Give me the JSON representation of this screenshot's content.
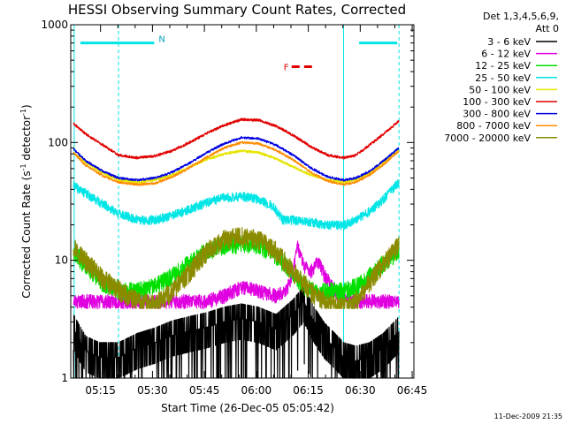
{
  "chart_data": {
    "type": "line",
    "title": "HESSI Observing Summary Count Rates, Corrected",
    "xlabel": "Start Time (26-Dec-05 05:05:42)",
    "ylabel_main": "Corrected Count Rate (s",
    "ylabel_sup1": "-1",
    "ylabel_mid": " detector",
    "ylabel_sup2": "-1",
    "ylabel_end": ")",
    "y_scale": "log",
    "ylim": [
      1,
      1000
    ],
    "xlim_min": [
      5.7,
      104.8
    ],
    "xticks": [
      {
        "v": 14.3,
        "label": "05:15"
      },
      {
        "v": 29.3,
        "label": "05:30"
      },
      {
        "v": 44.3,
        "label": "05:45"
      },
      {
        "v": 59.3,
        "label": "06:00"
      },
      {
        "v": 74.3,
        "label": "06:15"
      },
      {
        "v": 89.3,
        "label": "06:30"
      },
      {
        "v": 104.3,
        "label": "06:45"
      }
    ],
    "yticks": [
      {
        "v": 1,
        "label": "1"
      },
      {
        "v": 10,
        "label": "10"
      },
      {
        "v": 100,
        "label": "100"
      },
      {
        "v": 1000,
        "label": "1000"
      }
    ],
    "legend_header": [
      "Det 1,3,4,5,6,9,",
      "Att 0"
    ],
    "legend_placement": "right",
    "footer_stamp": "11-Dec-2009 21:35",
    "markers": [
      {
        "label": "N",
        "color": "#00e5e5",
        "x_start": 8.5,
        "x_end": 29.8,
        "y": 700
      },
      {
        "label": "",
        "color": "#00e5e5",
        "x_start": 89.0,
        "x_end": 100.0,
        "y": 700
      },
      {
        "label": "F",
        "color": "#e00000",
        "x_start": 69.5,
        "x_end": 76.0,
        "y": 440
      }
    ],
    "vlines": [
      {
        "x": 6.7,
        "style": "solid"
      },
      {
        "x": 19.5,
        "style": "dashed"
      },
      {
        "x": 84.5,
        "style": "solid"
      },
      {
        "x": 100.5,
        "style": "dashed"
      }
    ],
    "series": [
      {
        "name": "3 - 6 keV",
        "color": "#000000",
        "width": 1.2,
        "x": [
          6.5,
          10,
          14,
          19.5,
          25,
          30,
          35,
          40,
          45,
          50,
          55,
          60,
          65,
          70,
          73,
          76,
          79,
          82,
          84.5,
          88,
          92,
          96,
          100.5
        ],
        "y": [
          2.6,
          1.7,
          1.5,
          1.5,
          1.8,
          2.0,
          2.3,
          2.5,
          2.7,
          3.0,
          3.2,
          3.0,
          2.6,
          3.5,
          4.5,
          3.0,
          2.2,
          1.8,
          1.5,
          1.4,
          1.5,
          1.8,
          2.5
        ],
        "noise": 0.45,
        "seed": 11
      },
      {
        "name": "6 - 12 keV",
        "color": "#e000e0",
        "width": 1.1,
        "x": [
          6.5,
          19.5,
          30,
          45,
          50,
          55,
          60,
          65,
          68,
          70,
          71,
          73,
          75,
          77,
          79,
          82,
          84.5,
          90,
          100.5
        ],
        "y": [
          4.5,
          4.5,
          4.5,
          4.5,
          5.0,
          6.0,
          5.5,
          5.0,
          5.5,
          8.0,
          14.0,
          9.0,
          8.0,
          10.0,
          7.5,
          5.5,
          4.8,
          4.5,
          4.5
        ],
        "noise": 0.14,
        "seed": 23
      },
      {
        "name": "12 - 25 keV",
        "color": "#00e000",
        "width": 1.1,
        "x": [
          6.5,
          10,
          15,
          20,
          25,
          30,
          35,
          40,
          45,
          50,
          55,
          60,
          65,
          70,
          72,
          75,
          80,
          84.5,
          88,
          92,
          96,
          100.5
        ],
        "y": [
          12,
          9,
          6.5,
          5.5,
          5.5,
          6.0,
          7.5,
          9.5,
          12,
          13.5,
          14,
          13.5,
          11,
          8,
          6.5,
          5.5,
          5.5,
          5.5,
          6.0,
          7.5,
          9.5,
          12
        ],
        "noise": 0.18,
        "seed": 37
      },
      {
        "name": "25 - 50 keV",
        "color": "#00e5e5",
        "width": 1.1,
        "x": [
          6.5,
          10,
          15,
          19.5,
          25,
          30,
          35,
          40,
          45,
          50,
          55,
          60,
          64,
          67,
          70,
          75,
          80,
          84.5,
          88,
          92,
          96,
          100.5
        ],
        "y": [
          43,
          37,
          30,
          25,
          22,
          22,
          24,
          27,
          31,
          34,
          35,
          33,
          29,
          22,
          22,
          21,
          20,
          20,
          22,
          26,
          33,
          46
        ],
        "noise": 0.09,
        "seed": 41
      },
      {
        "name": "50 - 100 keV",
        "color": "#e5e500",
        "width": 1.1,
        "x": [
          6.5,
          10,
          15,
          19.5,
          25,
          30,
          35,
          40,
          45,
          50,
          55,
          60,
          65,
          70,
          75,
          80,
          84.5,
          88,
          92,
          96,
          100.5
        ],
        "y": [
          82,
          68,
          55,
          48,
          46,
          48,
          53,
          62,
          72,
          80,
          85,
          82,
          73,
          62,
          53,
          48,
          46,
          48,
          55,
          68,
          85
        ],
        "noise": 0.025,
        "seed": 53
      },
      {
        "name": "100 - 300 keV",
        "color": "#e00000",
        "width": 1.1,
        "x": [
          6.5,
          10,
          15,
          19.5,
          25,
          30,
          35,
          40,
          45,
          50,
          55,
          60,
          65,
          70,
          75,
          80,
          84.5,
          88,
          92,
          96,
          100.5
        ],
        "y": [
          145,
          118,
          95,
          78,
          74,
          77,
          85,
          100,
          120,
          140,
          157,
          155,
          138,
          115,
          92,
          78,
          74,
          78,
          95,
          118,
          152
        ],
        "noise": 0.025,
        "seed": 61
      },
      {
        "name": "300 - 800 keV",
        "color": "#0000e0",
        "width": 1.1,
        "x": [
          6.5,
          10,
          15,
          19.5,
          25,
          30,
          35,
          40,
          45,
          50,
          55,
          60,
          65,
          70,
          75,
          80,
          84.5,
          88,
          92,
          96,
          100.5
        ],
        "y": [
          88,
          70,
          57,
          50,
          48,
          50,
          56,
          67,
          82,
          98,
          110,
          108,
          95,
          78,
          61,
          51,
          48,
          50,
          57,
          70,
          90
        ],
        "noise": 0.022,
        "seed": 71
      },
      {
        "name": "800 - 7000 keV",
        "color": "#ff8c00",
        "width": 1.1,
        "x": [
          6.5,
          10,
          15,
          19.5,
          25,
          30,
          35,
          40,
          45,
          50,
          55,
          60,
          65,
          70,
          75,
          80,
          84.5,
          88,
          92,
          96,
          100.5
        ],
        "y": [
          82,
          64,
          52,
          46,
          44,
          45,
          51,
          61,
          75,
          90,
          100,
          98,
          86,
          71,
          56,
          47,
          44,
          46,
          53,
          65,
          85
        ],
        "noise": 0.022,
        "seed": 83
      },
      {
        "name": "7000 - 20000 keV",
        "color": "#8b8b00",
        "width": 1.1,
        "x": [
          6.5,
          10,
          15,
          20,
          25,
          30,
          35,
          40,
          45,
          50,
          55,
          60,
          65,
          70,
          75,
          80,
          84.5,
          88,
          92,
          96,
          100.5
        ],
        "y": [
          13.5,
          10,
          7,
          5.5,
          4.5,
          4.2,
          5.5,
          8,
          12,
          15,
          16,
          15,
          12,
          8,
          5.5,
          4.3,
          4.0,
          4.5,
          6.5,
          9.5,
          13.5
        ],
        "noise": 0.2,
        "floor": 3.9,
        "seed": 97
      }
    ]
  }
}
